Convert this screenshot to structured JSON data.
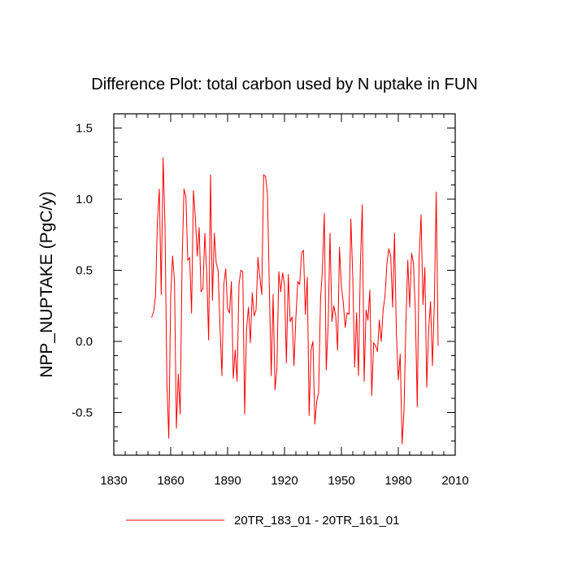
{
  "chart_data": {
    "type": "line",
    "title": "Difference Plot: total carbon used by N uptake in FUN",
    "xlabel": "",
    "ylabel": "NPP_NUPTAKE  (PgC/y)",
    "xlim": [
      1830,
      2010
    ],
    "ylim": [
      -0.8,
      1.6
    ],
    "xticks": [
      1830,
      1860,
      1890,
      1920,
      1950,
      1980,
      2010
    ],
    "xtick_labels": [
      "1830",
      "1860",
      "1890",
      "1920",
      "1950",
      "1980",
      "2010"
    ],
    "yticks": [
      -0.5,
      0.0,
      0.5,
      1.0,
      1.5
    ],
    "ytick_labels": [
      "-0.5",
      "0.0",
      "0.5",
      "1.0",
      "1.5"
    ],
    "legend": {
      "placement": "bottom-center"
    },
    "series": [
      {
        "name": "20TR_183_01 - 20TR_161_01",
        "color": "#ff0000",
        "x_start": 1850,
        "x_step": 1,
        "values": [
          0.17,
          0.21,
          0.32,
          0.85,
          1.07,
          0.33,
          1.29,
          0.82,
          -0.3,
          -0.68,
          0.32,
          0.6,
          0.42,
          -0.61,
          -0.23,
          -0.51,
          0.55,
          1.07,
          1.02,
          0.57,
          0.59,
          0.2,
          1.06,
          0.87,
          0.6,
          0.8,
          0.35,
          0.37,
          0.76,
          0.48,
          0.01,
          1.17,
          0.29,
          0.76,
          0.55,
          0.5,
          0.1,
          -0.24,
          0.4,
          0.51,
          0.23,
          0.2,
          0.42,
          -0.26,
          -0.06,
          -0.28,
          0.4,
          0.5,
          0.49,
          -0.51,
          0.09,
          0.24,
          -0.01,
          0.34,
          0.18,
          0.22,
          0.59,
          0.45,
          0.33,
          1.17,
          1.16,
          1.04,
          0.38,
          -0.24,
          0.33,
          -0.34,
          -0.19,
          0.49,
          0.35,
          0.48,
          0.4,
          -0.15,
          0.47,
          0.14,
          0.17,
          -0.17,
          0.17,
          0.42,
          0.4,
          0.62,
          0.64,
          0.19,
          0.45,
          -0.52,
          -0.06,
          0.0,
          -0.58,
          -0.42,
          -0.36,
          0.3,
          0.51,
          0.9,
          -0.2,
          0.11,
          0.76,
          0.14,
          0.25,
          0.18,
          -0.06,
          0.66,
          0.39,
          0.27,
          0.1,
          0.2,
          0.19,
          0.86,
          0.45,
          -0.18,
          0.2,
          -0.24,
          0.53,
          0.96,
          -0.28,
          0.22,
          0.15,
          0.36,
          -0.38,
          -0.01,
          -0.03,
          -0.07,
          0.15,
          0.0,
          0.22,
          0.32,
          0.55,
          0.65,
          0.6,
          0.24,
          0.76,
          0.05,
          -0.27,
          -0.09,
          -0.72,
          -0.49,
          0.12,
          0.57,
          0.24,
          0.62,
          0.55,
          0.2,
          -0.46,
          0.59,
          0.89,
          0.26,
          0.52,
          -0.32,
          0.08,
          0.28,
          -0.17,
          0.27,
          1.05,
          -0.03
        ]
      }
    ]
  }
}
